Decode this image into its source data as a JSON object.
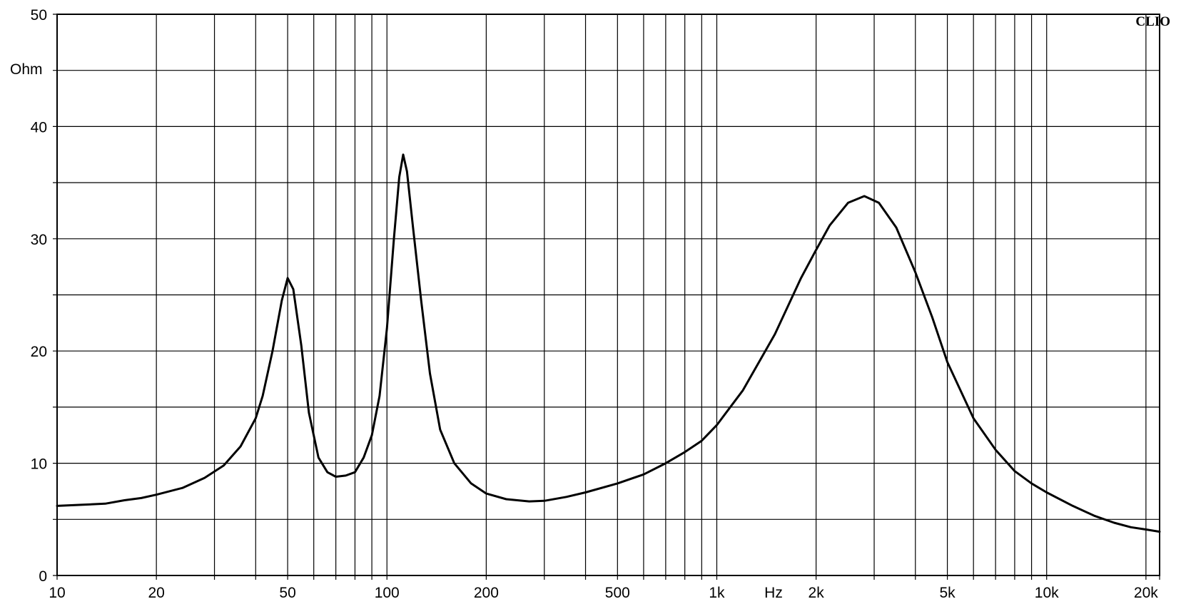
{
  "brand_label": "CLIO",
  "chart_data": {
    "type": "line",
    "title": "",
    "xlabel": "Hz",
    "ylabel": "Ohm",
    "x_scale": "log",
    "xlim": [
      10,
      22000
    ],
    "ylim": [
      0,
      50
    ],
    "grid": true,
    "x_tick_labels": [
      {
        "value": 10,
        "label": "10"
      },
      {
        "value": 20,
        "label": "20"
      },
      {
        "value": 50,
        "label": "50"
      },
      {
        "value": 100,
        "label": "100"
      },
      {
        "value": 200,
        "label": "200"
      },
      {
        "value": 500,
        "label": "500"
      },
      {
        "value": 1000,
        "label": "1k"
      },
      {
        "value": 2000,
        "label": "2k"
      },
      {
        "value": 5000,
        "label": "5k"
      },
      {
        "value": 10000,
        "label": "10k"
      },
      {
        "value": 20000,
        "label": "20k"
      }
    ],
    "x_gridlines": [
      10,
      20,
      30,
      40,
      50,
      60,
      70,
      80,
      90,
      100,
      200,
      300,
      400,
      500,
      600,
      700,
      800,
      900,
      1000,
      2000,
      3000,
      4000,
      5000,
      6000,
      7000,
      8000,
      9000,
      10000,
      20000,
      22000
    ],
    "y_tick_labels": [
      {
        "value": 0,
        "label": "0"
      },
      {
        "value": 10,
        "label": "10"
      },
      {
        "value": 20,
        "label": "20"
      },
      {
        "value": 30,
        "label": "30"
      },
      {
        "value": 40,
        "label": "40"
      },
      {
        "value": 50,
        "label": "50"
      }
    ],
    "y_gridlines": [
      0,
      5,
      10,
      15,
      20,
      25,
      30,
      35,
      40,
      45,
      50
    ],
    "series": [
      {
        "color": "#000000",
        "points": [
          [
            10,
            6.2
          ],
          [
            12,
            6.3
          ],
          [
            14,
            6.4
          ],
          [
            16,
            6.7
          ],
          [
            18,
            6.9
          ],
          [
            20,
            7.2
          ],
          [
            24,
            7.8
          ],
          [
            28,
            8.7
          ],
          [
            32,
            9.8
          ],
          [
            36,
            11.5
          ],
          [
            40,
            14.0
          ],
          [
            42,
            16.0
          ],
          [
            45,
            20.0
          ],
          [
            48,
            24.5
          ],
          [
            50,
            26.5
          ],
          [
            52,
            25.5
          ],
          [
            55,
            20.5
          ],
          [
            58,
            14.5
          ],
          [
            62,
            10.5
          ],
          [
            66,
            9.2
          ],
          [
            70,
            8.8
          ],
          [
            75,
            8.9
          ],
          [
            80,
            9.2
          ],
          [
            85,
            10.5
          ],
          [
            90,
            12.5
          ],
          [
            95,
            16.0
          ],
          [
            100,
            22.0
          ],
          [
            105,
            30.0
          ],
          [
            109,
            35.5
          ],
          [
            112,
            37.5
          ],
          [
            115,
            36.0
          ],
          [
            120,
            31.0
          ],
          [
            127,
            24.5
          ],
          [
            135,
            18.0
          ],
          [
            145,
            13.0
          ],
          [
            160,
            10.0
          ],
          [
            180,
            8.2
          ],
          [
            200,
            7.3
          ],
          [
            230,
            6.8
          ],
          [
            270,
            6.6
          ],
          [
            300,
            6.65
          ],
          [
            350,
            7.0
          ],
          [
            400,
            7.4
          ],
          [
            500,
            8.2
          ],
          [
            600,
            9.0
          ],
          [
            700,
            10.0
          ],
          [
            800,
            11.0
          ],
          [
            900,
            12.0
          ],
          [
            1000,
            13.4
          ],
          [
            1200,
            16.5
          ],
          [
            1500,
            21.5
          ],
          [
            1800,
            26.5
          ],
          [
            2000,
            29.0
          ],
          [
            2200,
            31.2
          ],
          [
            2500,
            33.2
          ],
          [
            2800,
            33.8
          ],
          [
            3100,
            33.2
          ],
          [
            3500,
            31.0
          ],
          [
            4000,
            27.0
          ],
          [
            4500,
            23.0
          ],
          [
            5000,
            19.0
          ],
          [
            6000,
            14.0
          ],
          [
            7000,
            11.2
          ],
          [
            8000,
            9.3
          ],
          [
            9000,
            8.2
          ],
          [
            10000,
            7.4
          ],
          [
            12000,
            6.2
          ],
          [
            14000,
            5.3
          ],
          [
            16000,
            4.7
          ],
          [
            18000,
            4.3
          ],
          [
            20000,
            4.1
          ],
          [
            22000,
            3.9
          ]
        ]
      }
    ]
  }
}
